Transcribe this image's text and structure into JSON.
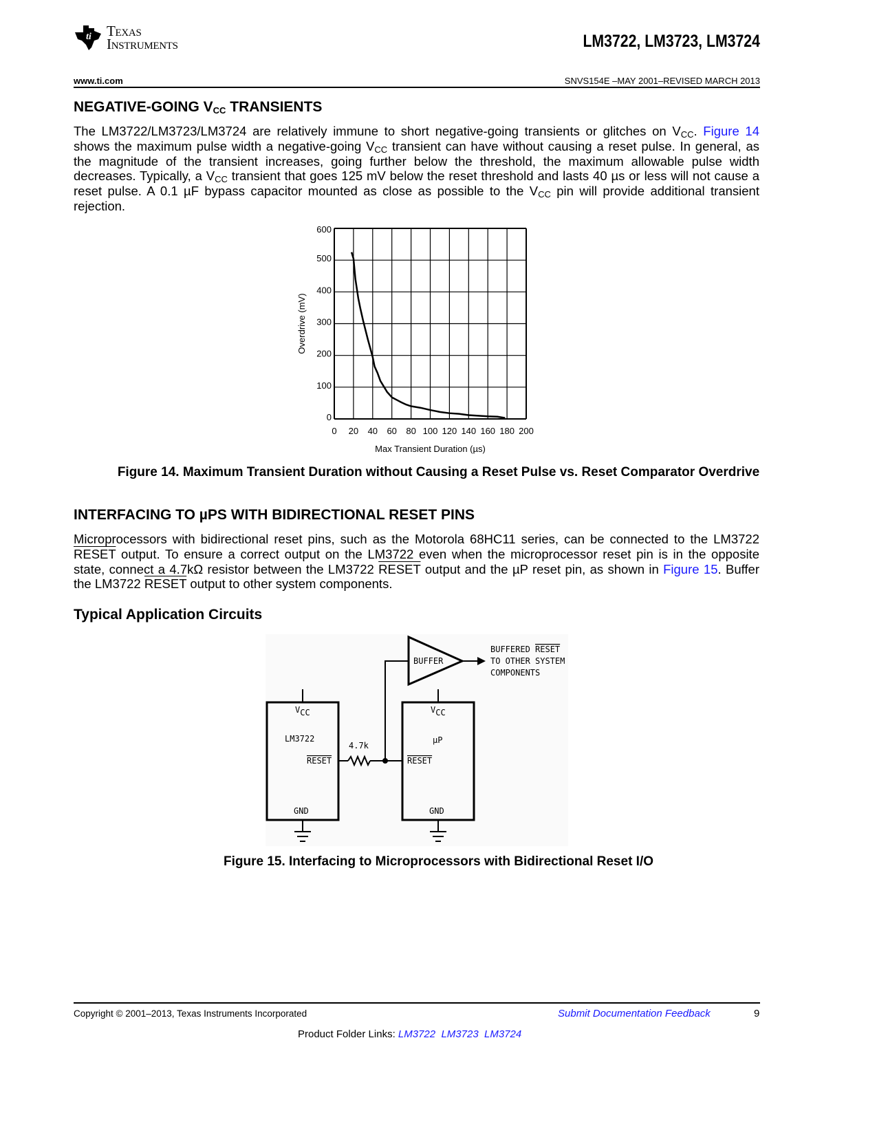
{
  "header": {
    "logo_line1": "Texas",
    "logo_line2": "Instruments",
    "parts": "LM3722, LM3723, LM3724",
    "url": "www.ti.com",
    "doc_id": "SNVS154E –MAY 2001–REVISED MARCH 2013"
  },
  "section1": {
    "title_pre": "NEGATIVE-GOING V",
    "title_sub": "CC",
    "title_post": " TRANSIENTS",
    "p": [
      "The LM3722/LM3723/LM3724 are relatively immune to short negative-going transients or glitches on V",
      "CC",
      ". ",
      "Figure 14",
      " shows the maximum pulse width a negative-going V",
      "CC",
      " transient can have without causing a reset pulse. In general, as the magnitude of the transient increases, going further below the threshold, the maximum allowable pulse width decreases. Typically, a V",
      "CC",
      " transient that goes 125 mV below the reset threshold and lasts 40 µs or less will not cause a reset pulse. A 0.1 µF bypass capacitor mounted as close as possible to the V",
      "CC",
      " pin will provide additional transient rejection."
    ]
  },
  "figure14": {
    "caption": "Figure 14.  Maximum Transient Duration without Causing a Reset Pulse vs. Reset Comparator Overdrive"
  },
  "chart_data": {
    "type": "line",
    "title": "",
    "xlabel": "Max Transient Duration (µs)",
    "ylabel": "Overdrive (mV)",
    "xlim": [
      0,
      200
    ],
    "ylim": [
      0,
      600
    ],
    "xticks": [
      "0",
      "20",
      "40",
      "60",
      "80",
      "100",
      "120",
      "140",
      "160",
      "180",
      "200"
    ],
    "yticks": [
      "0",
      "100",
      "200",
      "300",
      "400",
      "500",
      "600"
    ],
    "grid": true,
    "series": [
      {
        "x": [
          18,
          20,
          22,
          25,
          27,
          30,
          35,
          40,
          42,
          45,
          48,
          52,
          55,
          60,
          65,
          70,
          75,
          80,
          90,
          100,
          110,
          120,
          130,
          140,
          150,
          160,
          170,
          178
        ],
        "y": [
          525,
          505,
          440,
          380,
          350,
          310,
          250,
          195,
          165,
          145,
          120,
          100,
          85,
          68,
          60,
          52,
          45,
          40,
          35,
          28,
          22,
          18,
          16,
          12,
          10,
          8,
          7,
          3
        ]
      }
    ]
  },
  "section2": {
    "title": "INTERFACING TO µPS WITH BIDIRECTIONAL RESET PINS",
    "p": [
      "Microprocessors with bidirectional reset pins, such as the Motorola 68HC11 series, can be connected to the LM3722 ",
      "RESET",
      " output. To ensure a correct output on the LM3722 even when the microprocessor reset pin is in the opposite state, connect a 4.7kΩ resistor between the LM3722 ",
      "RESET",
      " output and the µP reset pin, as shown in ",
      "Figure 15",
      ". Buffer the LM3722 ",
      "RESET",
      " output to other system components."
    ]
  },
  "section3": {
    "title": "Typical Application Circuits"
  },
  "figure15": {
    "caption": "Figure 15.  Interfacing to Microprocessors with Bidirectional Reset I/O",
    "buffer": "BUFFER",
    "out_line1_pre": "BUFFERED ",
    "out_line1_ov": "RESET",
    "out_line2": "TO OTHER SYSTEM",
    "out_line3": "COMPONENTS",
    "vcc_v": "V",
    "vcc_sub": "CC",
    "chip1": "LM3722",
    "chip2": "µP",
    "reset": "RESET",
    "gnd": "GND",
    "resistor": "4.7k"
  },
  "footer": {
    "copyright": "Copyright © 2001–2013, Texas Instruments Incorporated",
    "feedback": "Submit Documentation Feedback",
    "page": "9",
    "folder_label": "Product Folder Links: ",
    "folder_links": [
      "LM3722",
      "LM3723",
      "LM3724"
    ]
  }
}
